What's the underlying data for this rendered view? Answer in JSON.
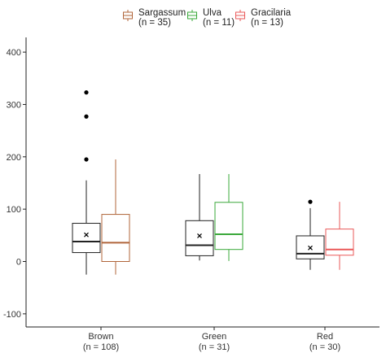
{
  "chart_data": {
    "type": "box",
    "title": "",
    "xlabel": "",
    "ylabel": "",
    "ylim": [
      -125,
      425
    ],
    "yticks": [
      -100,
      0,
      100,
      200,
      300,
      400
    ],
    "yticks_labels": [
      "-100",
      "0",
      "100",
      "200",
      "300",
      "400"
    ],
    "grid": false,
    "legend_position": "top",
    "categories": [
      {
        "name": "Brown",
        "n": "(n = 108)"
      },
      {
        "name": "Green",
        "n": "(n = 31)"
      },
      {
        "name": "Red",
        "n": "(n = 30)"
      }
    ],
    "legend": [
      {
        "name": "Sargassum",
        "n": "(n = 35)",
        "color": "#b0653a"
      },
      {
        "name": "Ulva",
        "n": "(n = 11)",
        "color": "#3aa83a"
      },
      {
        "name": "Gracilaria",
        "n": "(n = 13)",
        "color": "#ea5959"
      }
    ],
    "boxes": [
      {
        "category": "Brown",
        "group": "overall",
        "color": "#222222",
        "whisker_low": -25,
        "q1": 17,
        "median": 38,
        "q3": 73,
        "whisker_high": 155,
        "mean": 51,
        "outliers": [
          195,
          277,
          323
        ]
      },
      {
        "category": "Brown",
        "group": "Sargassum",
        "color": "#b0653a",
        "whisker_low": -25,
        "q1": 0,
        "median": 36,
        "q3": 90,
        "whisker_high": 195,
        "mean": null,
        "outliers": []
      },
      {
        "category": "Green",
        "group": "overall",
        "color": "#222222",
        "whisker_low": 2,
        "q1": 11,
        "median": 31,
        "q3": 78,
        "whisker_high": 167,
        "mean": 49,
        "outliers": []
      },
      {
        "category": "Green",
        "group": "Ulva",
        "color": "#3aa83a",
        "whisker_low": 1,
        "q1": 23,
        "median": 52,
        "q3": 113,
        "whisker_high": 167,
        "mean": null,
        "outliers": []
      },
      {
        "category": "Red",
        "group": "overall",
        "color": "#222222",
        "whisker_low": -16,
        "q1": 5,
        "median": 15,
        "q3": 49,
        "whisker_high": 102,
        "mean": 26,
        "outliers": [
          114
        ]
      },
      {
        "category": "Red",
        "group": "Gracilaria",
        "color": "#ea5959",
        "whisker_low": -16,
        "q1": 12,
        "median": 23,
        "q3": 62,
        "whisker_high": 114,
        "mean": null,
        "outliers": []
      }
    ]
  }
}
